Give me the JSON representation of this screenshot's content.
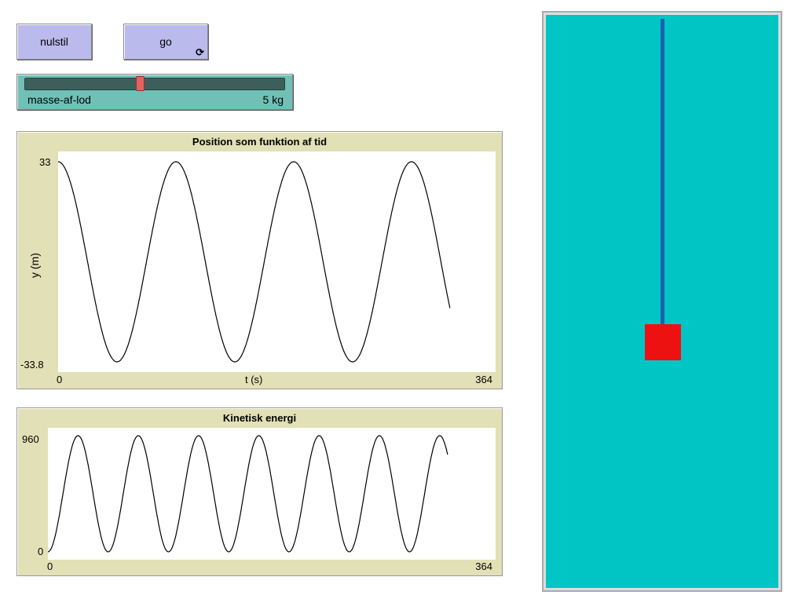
{
  "buttons": {
    "reset": "nulstil",
    "go": "go",
    "go_icon": "forever-repeat-icon"
  },
  "slider": {
    "label": "masse-af-lod",
    "value": 5,
    "unit": "kg",
    "value_text": "5 kg"
  },
  "colors": {
    "world_background": "#00c5c5",
    "rope": "#2060b0",
    "weight": "#ee1111",
    "button": "#babaed",
    "slider": "#70c0b6",
    "plot_frame": "#e2e0b6"
  },
  "chart_data": [
    {
      "type": "line",
      "title": "Position som funktion af tid",
      "xlabel": "t (s)",
      "ylabel": "y (m)",
      "xlim": [
        0,
        364
      ],
      "ylim": [
        -33.8,
        33
      ],
      "x_tick_labels": [
        "0",
        "364"
      ],
      "y_tick_labels": [
        "33",
        "-33.8"
      ],
      "series": [
        {
          "function": "y = 33.4*cos(2*pi*t/98) - 0.4",
          "t_range": [
            0,
            326
          ],
          "amplitude": 33.4,
          "period": 98
        }
      ]
    },
    {
      "type": "line",
      "title": "Kinetisk energi",
      "xlabel": "",
      "ylabel": "",
      "xlim": [
        0,
        364
      ],
      "ylim": [
        0,
        960
      ],
      "x_tick_labels": [
        "0",
        "364"
      ],
      "y_tick_labels": [
        "960",
        "0"
      ],
      "series": [
        {
          "function": "KE = 960*sin^2(2*pi*t/98)",
          "t_range": [
            0,
            325
          ],
          "peak": 960,
          "period": 49
        }
      ]
    }
  ]
}
